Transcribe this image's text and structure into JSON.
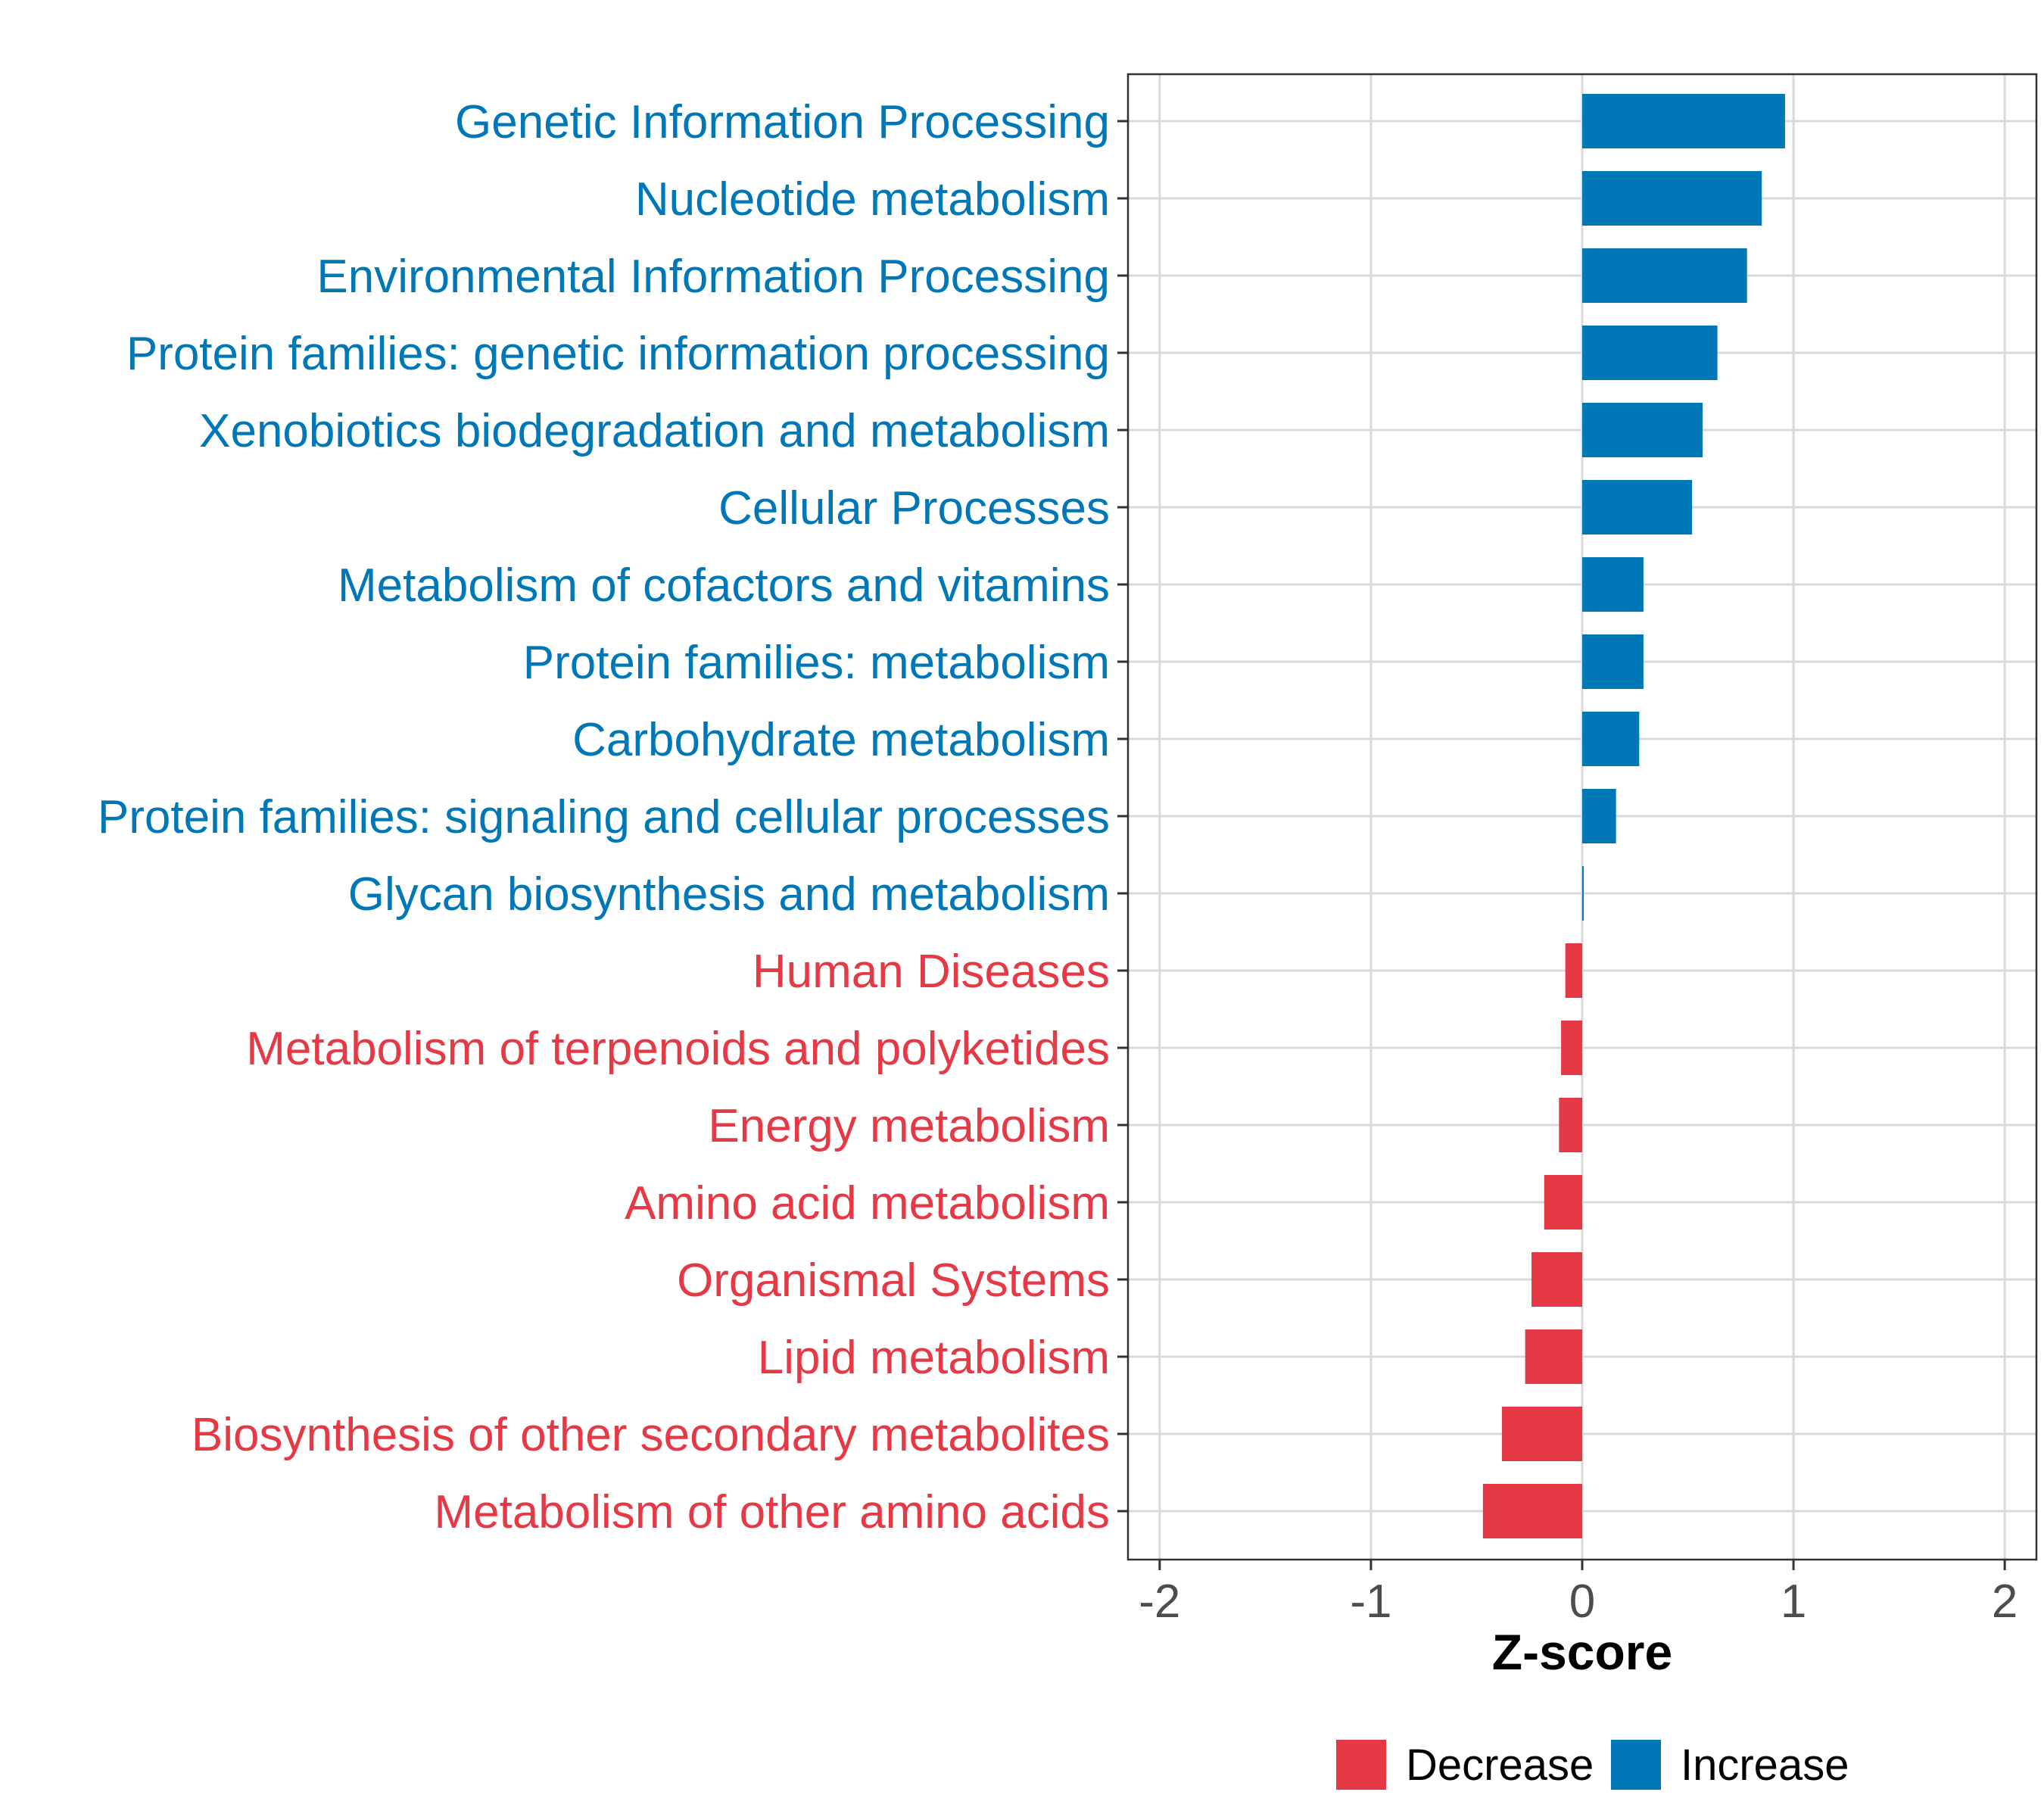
{
  "chart_data": {
    "type": "bar",
    "orientation": "horizontal",
    "title": "",
    "xlabel": "Z-score",
    "ylabel": "",
    "xlim": [
      -2.15,
      2.15
    ],
    "xticks": [
      -2,
      -1,
      0,
      1,
      2
    ],
    "xtick_labels": [
      "-2",
      "-1",
      "0",
      "1",
      "2"
    ],
    "grid": true,
    "legend_position": "bottom",
    "colors": {
      "Decrease": "#e63946",
      "Increase": "#0077b6"
    },
    "legend": [
      {
        "name": "Decrease",
        "color": "#e63946"
      },
      {
        "name": "Increase",
        "color": "#0077b6"
      }
    ],
    "categories": [
      "Genetic Information Processing",
      "Nucleotide metabolism",
      "Environmental Information Processing",
      "Protein families: genetic information processing",
      "Xenobiotics biodegradation and metabolism",
      "Cellular Processes",
      "Metabolism of cofactors and vitamins",
      "Protein families: metabolism",
      "Carbohydrate metabolism",
      "Protein families: signaling and cellular processes",
      "Glycan biosynthesis and metabolism",
      "Human Diseases",
      "Metabolism of terpenoids and polyketides",
      "Energy metabolism",
      "Amino acid metabolism",
      "Organismal Systems",
      "Lipid metabolism",
      "Biosynthesis of other secondary metabolites",
      "Metabolism of other amino acids"
    ],
    "values": [
      0.96,
      0.85,
      0.78,
      0.64,
      0.57,
      0.52,
      0.29,
      0.29,
      0.27,
      0.16,
      0.005,
      -0.08,
      -0.1,
      -0.11,
      -0.18,
      -0.24,
      -0.27,
      -0.38,
      -0.47
    ],
    "groups": [
      "Increase",
      "Increase",
      "Increase",
      "Increase",
      "Increase",
      "Increase",
      "Increase",
      "Increase",
      "Increase",
      "Increase",
      "Increase",
      "Decrease",
      "Decrease",
      "Decrease",
      "Decrease",
      "Decrease",
      "Decrease",
      "Decrease",
      "Decrease"
    ]
  }
}
